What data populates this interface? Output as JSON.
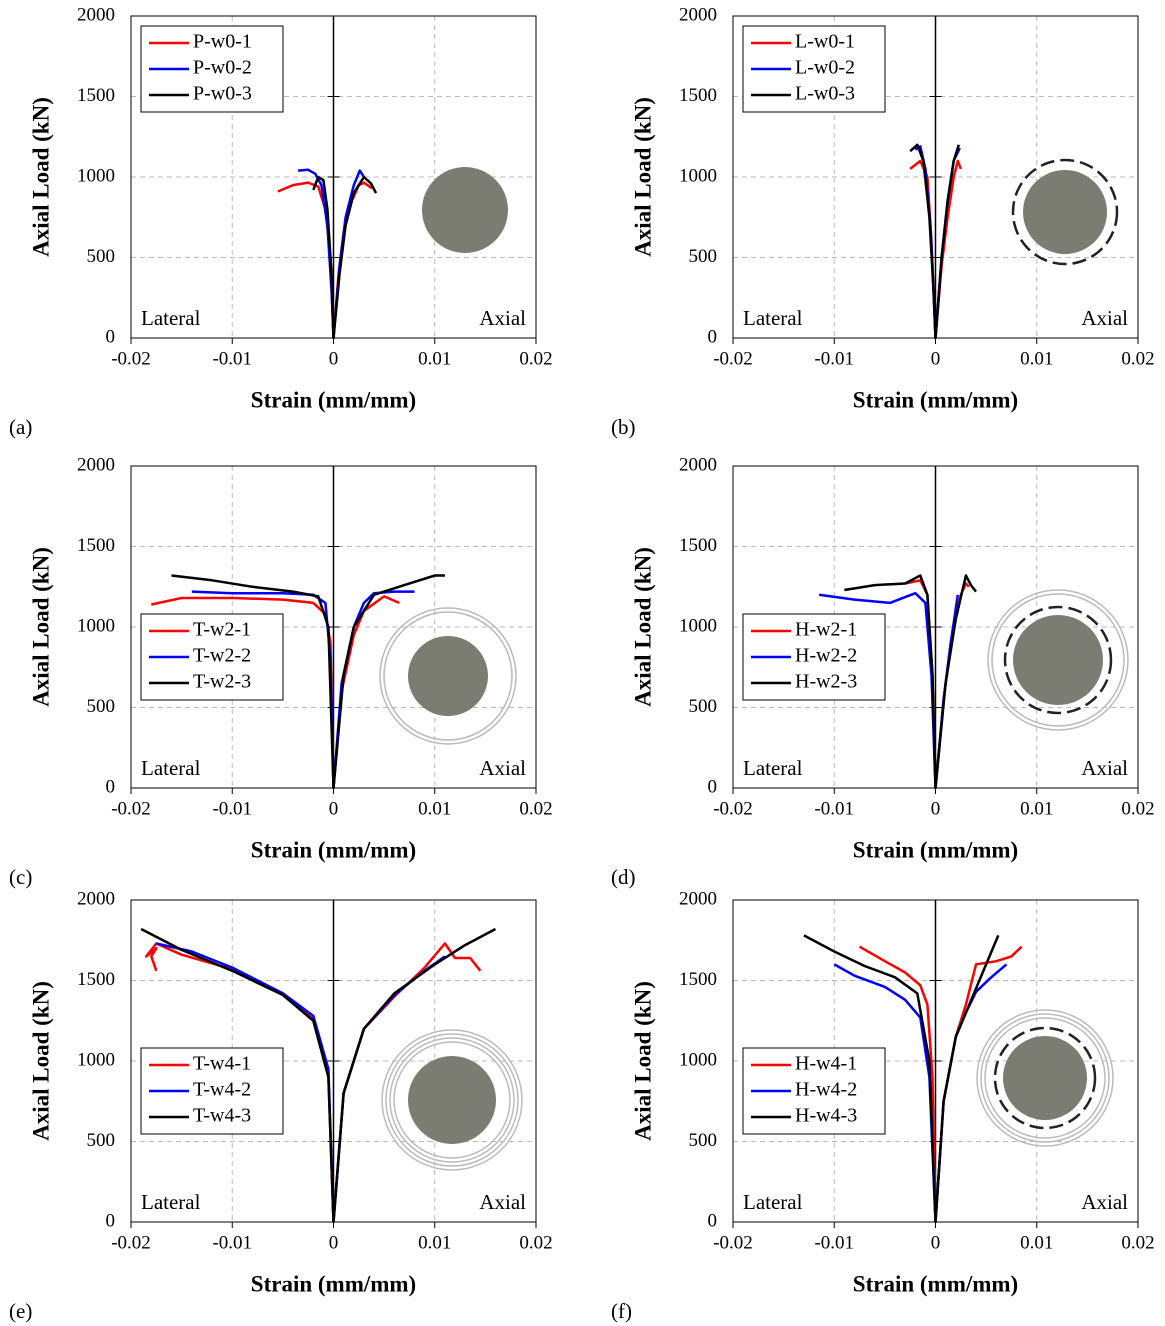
{
  "chart_data": [
    {
      "type": "line",
      "panel_label": "(a)",
      "x_label": "Strain (mm/mm)",
      "y_label": "Axial Load (kN)",
      "annotations": [
        "Lateral",
        "Axial"
      ],
      "xlim": [
        -0.02,
        0.02
      ],
      "ylim": [
        0,
        2000
      ],
      "xticks": [
        -0.02,
        -0.01,
        0,
        0.01,
        0.02
      ],
      "yticks": [
        0,
        500,
        1000,
        1500,
        2000
      ],
      "grid": true,
      "legend": "upper left",
      "series": [
        {
          "name": "P-w0-1",
          "color": "#ff0000",
          "x": [
            -0.0055,
            -0.004,
            -0.0025,
            -0.0015,
            -0.0008,
            -0.0003,
            0,
            0.0005,
            0.001,
            0.0018,
            0.0025,
            0.003,
            0.0038
          ],
          "values": [
            910,
            950,
            965,
            940,
            800,
            500,
            0,
            400,
            650,
            850,
            950,
            965,
            930
          ]
        },
        {
          "name": "P-w0-2",
          "color": "#0000ff",
          "x": [
            -0.0035,
            -0.0025,
            -0.0018,
            -0.0012,
            -0.0006,
            -0.0002,
            0,
            0.0006,
            0.0012,
            0.002,
            0.0026,
            0.003
          ],
          "values": [
            1040,
            1045,
            1020,
            950,
            700,
            300,
            0,
            450,
            750,
            950,
            1040,
            1000
          ]
        },
        {
          "name": "P-w0-3",
          "color": "#000000",
          "x": [
            -0.002,
            -0.0015,
            -0.001,
            -0.0006,
            -0.0002,
            0,
            0.0006,
            0.0012,
            0.002,
            0.003,
            0.0037,
            0.0042
          ],
          "values": [
            920,
            1000,
            980,
            800,
            400,
            0,
            400,
            700,
            900,
            1000,
            960,
            900
          ]
        }
      ]
    },
    {
      "type": "line",
      "panel_label": "(b)",
      "x_label": "Strain (mm/mm)",
      "y_label": "Axial Load (kN)",
      "annotations": [
        "Lateral",
        "Axial"
      ],
      "xlim": [
        -0.02,
        0.02
      ],
      "ylim": [
        0,
        2000
      ],
      "xticks": [
        -0.02,
        -0.01,
        0,
        0.01,
        0.02
      ],
      "yticks": [
        0,
        500,
        1000,
        1500,
        2000
      ],
      "grid": true,
      "legend": "upper left",
      "series": [
        {
          "name": "L-w0-1",
          "color": "#ff0000",
          "x": [
            -0.0025,
            -0.0015,
            -0.0008,
            -0.0004,
            0,
            0.0006,
            0.0012,
            0.0018,
            0.0022,
            0.0025
          ],
          "values": [
            1050,
            1100,
            1000,
            600,
            0,
            450,
            750,
            1000,
            1100,
            1050
          ]
        },
        {
          "name": "L-w0-2",
          "color": "#0000ff",
          "x": [
            -0.002,
            -0.0015,
            -0.001,
            -0.0005,
            -0.0002,
            0,
            0.0006,
            0.0012,
            0.0018,
            0.0024
          ],
          "values": [
            1170,
            1190,
            1050,
            700,
            300,
            0,
            500,
            850,
            1100,
            1180
          ]
        },
        {
          "name": "L-w0-3",
          "color": "#000000",
          "x": [
            -0.0025,
            -0.0018,
            -0.0012,
            -0.0006,
            -0.0002,
            0,
            0.0006,
            0.0012,
            0.0018,
            0.0023
          ],
          "values": [
            1160,
            1200,
            1100,
            750,
            300,
            0,
            500,
            850,
            1100,
            1200
          ]
        }
      ]
    },
    {
      "type": "line",
      "panel_label": "(c)",
      "x_label": "Strain (mm/mm)",
      "y_label": "Axial Load (kN)",
      "annotations": [
        "Lateral",
        "Axial"
      ],
      "xlim": [
        -0.02,
        0.02
      ],
      "ylim": [
        0,
        2000
      ],
      "xticks": [
        -0.02,
        -0.01,
        0,
        0.01,
        0.02
      ],
      "yticks": [
        0,
        500,
        1000,
        1500,
        2000
      ],
      "grid": true,
      "legend": "center left",
      "series": [
        {
          "name": "T-w2-1",
          "color": "#ff0000",
          "x": [
            -0.018,
            -0.015,
            -0.01,
            -0.005,
            -0.002,
            -0.0008,
            -0.0003,
            0,
            0.0008,
            0.002,
            0.003,
            0.005,
            0.0065
          ],
          "values": [
            1140,
            1180,
            1180,
            1170,
            1150,
            1080,
            900,
            0,
            600,
            950,
            1100,
            1190,
            1150
          ]
        },
        {
          "name": "T-w2-2",
          "color": "#0000ff",
          "x": [
            -0.014,
            -0.01,
            -0.005,
            -0.002,
            -0.0008,
            -0.0003,
            0,
            0.0008,
            0.002,
            0.003,
            0.004,
            0.006,
            0.008
          ],
          "values": [
            1220,
            1210,
            1210,
            1200,
            1150,
            800,
            0,
            650,
            1000,
            1150,
            1210,
            1220,
            1220
          ]
        },
        {
          "name": "T-w2-3",
          "color": "#000000",
          "x": [
            -0.016,
            -0.012,
            -0.008,
            -0.004,
            -0.0015,
            -0.0005,
            0,
            0.001,
            0.002,
            0.004,
            0.007,
            0.01,
            0.011
          ],
          "values": [
            1320,
            1290,
            1250,
            1220,
            1190,
            1000,
            0,
            700,
            1000,
            1200,
            1260,
            1320,
            1320
          ]
        }
      ]
    },
    {
      "type": "line",
      "panel_label": "(d)",
      "x_label": "Strain (mm/mm)",
      "y_label": "Axial Load (kN)",
      "annotations": [
        "Lateral",
        "Axial"
      ],
      "xlim": [
        -0.02,
        0.02
      ],
      "ylim": [
        0,
        2000
      ],
      "xticks": [
        -0.02,
        -0.01,
        0,
        0.01,
        0.02
      ],
      "yticks": [
        0,
        500,
        1000,
        1500,
        2000
      ],
      "grid": true,
      "legend": "center left",
      "series": [
        {
          "name": "H-w2-1",
          "color": "#ff0000",
          "x": [
            -0.003,
            -0.0015,
            -0.0008,
            -0.0003,
            0,
            0.0008,
            0.0015,
            0.0025,
            0.003,
            0.0033
          ],
          "values": [
            1270,
            1290,
            1200,
            700,
            0,
            550,
            900,
            1200,
            1270,
            1250
          ]
        },
        {
          "name": "H-w2-2",
          "color": "#0000ff",
          "x": [
            -0.0115,
            -0.008,
            -0.0045,
            -0.002,
            -0.001,
            -0.0004,
            0,
            0.0008,
            0.0015,
            0.0022
          ],
          "values": [
            1200,
            1170,
            1150,
            1210,
            1150,
            700,
            0,
            550,
            900,
            1200
          ]
        },
        {
          "name": "H-w2-3",
          "color": "#000000",
          "x": [
            -0.009,
            -0.006,
            -0.003,
            -0.0015,
            -0.0008,
            -0.0003,
            0,
            0.001,
            0.002,
            0.003,
            0.0035,
            0.004
          ],
          "values": [
            1230,
            1260,
            1270,
            1320,
            1200,
            700,
            0,
            650,
            1050,
            1320,
            1260,
            1220
          ]
        }
      ]
    },
    {
      "type": "line",
      "panel_label": "(e)",
      "x_label": "Strain (mm/mm)",
      "y_label": "Axial Load (kN)",
      "annotations": [
        "Lateral",
        "Axial"
      ],
      "xlim": [
        -0.02,
        0.02
      ],
      "ylim": [
        0,
        2000
      ],
      "xticks": [
        -0.02,
        -0.01,
        0,
        0.01,
        0.02
      ],
      "yticks": [
        0,
        500,
        1000,
        1500,
        2000
      ],
      "grid": true,
      "legend": "center left",
      "series": [
        {
          "name": "T-w4-1",
          "color": "#ff0000",
          "x": [
            -0.0175,
            -0.018,
            -0.0175,
            -0.0185,
            -0.0175,
            -0.015,
            -0.01,
            -0.005,
            -0.002,
            -0.0005,
            0,
            0.001,
            0.003,
            0.006,
            0.009,
            0.011,
            0.012,
            0.0135,
            0.0145
          ],
          "values": [
            1560,
            1650,
            1700,
            1650,
            1730,
            1660,
            1570,
            1420,
            1260,
            900,
            0,
            800,
            1200,
            1400,
            1580,
            1730,
            1640,
            1640,
            1560
          ]
        },
        {
          "name": "T-w4-2",
          "color": "#0000ff",
          "x": [
            -0.0175,
            -0.014,
            -0.01,
            -0.005,
            -0.002,
            -0.0005,
            0,
            0.001,
            0.003,
            0.006,
            0.009,
            0.011
          ],
          "values": [
            1730,
            1680,
            1580,
            1420,
            1280,
            950,
            0,
            800,
            1200,
            1410,
            1560,
            1650
          ]
        },
        {
          "name": "T-w4-3",
          "color": "#000000",
          "x": [
            -0.019,
            -0.015,
            -0.01,
            -0.005,
            -0.002,
            -0.0005,
            0,
            0.001,
            0.003,
            0.006,
            0.01,
            0.013,
            0.016
          ],
          "values": [
            1820,
            1690,
            1560,
            1410,
            1250,
            900,
            0,
            800,
            1200,
            1420,
            1600,
            1720,
            1820
          ]
        }
      ]
    },
    {
      "type": "line",
      "panel_label": "(f)",
      "x_label": "Strain (mm/mm)",
      "y_label": "Axial Load (kN)",
      "annotations": [
        "Lateral",
        "Axial"
      ],
      "xlim": [
        -0.02,
        0.02
      ],
      "ylim": [
        0,
        2000
      ],
      "xticks": [
        -0.02,
        -0.01,
        0,
        0.01,
        0.02
      ],
      "yticks": [
        0,
        500,
        1000,
        1500,
        2000
      ],
      "grid": true,
      "legend": "center left",
      "series": [
        {
          "name": "H-w4-1",
          "color": "#ff0000",
          "x": [
            -0.0075,
            -0.005,
            -0.003,
            -0.0015,
            -0.0008,
            -0.0003,
            0,
            0.0008,
            0.002,
            0.003,
            0.004,
            0.006,
            0.0075,
            0.0085
          ],
          "values": [
            1710,
            1620,
            1550,
            1470,
            1350,
            900,
            0,
            750,
            1150,
            1350,
            1600,
            1620,
            1650,
            1710
          ]
        },
        {
          "name": "H-w4-2",
          "color": "#0000ff",
          "x": [
            -0.01,
            -0.008,
            -0.005,
            -0.003,
            -0.0015,
            -0.0006,
            0,
            0.0008,
            0.002,
            0.003,
            0.004,
            0.0055,
            0.007
          ],
          "values": [
            1600,
            1530,
            1460,
            1380,
            1270,
            900,
            0,
            750,
            1150,
            1300,
            1430,
            1520,
            1600
          ]
        },
        {
          "name": "H-w4-3",
          "color": "#000000",
          "x": [
            -0.013,
            -0.01,
            -0.007,
            -0.004,
            -0.0018,
            -0.0006,
            0,
            0.0008,
            0.002,
            0.003,
            0.004,
            0.005,
            0.0062
          ],
          "values": [
            1780,
            1680,
            1590,
            1520,
            1420,
            1000,
            0,
            750,
            1150,
            1300,
            1450,
            1600,
            1780
          ]
        }
      ]
    }
  ]
}
